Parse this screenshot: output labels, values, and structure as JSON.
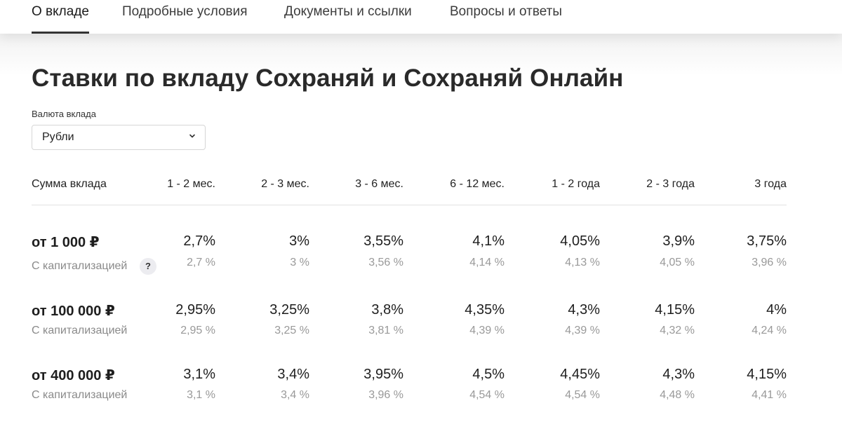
{
  "nav": {
    "tabs": [
      {
        "label": "О вкладе",
        "active": true
      },
      {
        "label": "Подробные условия",
        "active": false
      },
      {
        "label": "Документы и ссылки",
        "active": false
      },
      {
        "label": "Вопросы и ответы",
        "active": false
      }
    ]
  },
  "page": {
    "title": "Ставки по вкладу Сохраняй и Сохраняй Онлайн"
  },
  "currency": {
    "label": "Валюта вклада",
    "selected": "Рубли"
  },
  "table": {
    "first_header": "Сумма вклада",
    "columns": [
      "1 - 2 мес.",
      "2 - 3 мес.",
      "3 - 6 мес.",
      "6 - 12 мес.",
      "1 - 2 года",
      "2 - 3 года",
      "3 года"
    ],
    "rows": [
      {
        "amount": "от 1 000 ₽",
        "cap_label": "С капитализацией",
        "rates": [
          "2,7%",
          "3%",
          "3,55%",
          "4,1%",
          "4,05%",
          "3,9%",
          "3,75%"
        ],
        "cap_rates": [
          "2,7 %",
          "3 %",
          "3,56 %",
          "4,14 %",
          "4,13 %",
          "4,05 %",
          "3,96 %"
        ]
      },
      {
        "amount": "от 100 000 ₽",
        "cap_label": "С капитализацией",
        "rates": [
          "2,95%",
          "3,25%",
          "3,8%",
          "4,35%",
          "4,3%",
          "4,15%",
          "4%"
        ],
        "cap_rates": [
          "2,95 %",
          "3,25 %",
          "3,81 %",
          "4,39 %",
          "4,39 %",
          "4,32 %",
          "4,24 %"
        ]
      },
      {
        "amount": "от 400 000 ₽",
        "cap_label": "С капитализацией",
        "rates": [
          "3,1%",
          "3,4%",
          "3,95%",
          "4,5%",
          "4,45%",
          "4,3%",
          "4,15%"
        ],
        "cap_rates": [
          "3,1 %",
          "3,4 %",
          "3,96 %",
          "4,54 %",
          "4,54 %",
          "4,48 %",
          "4,41 %"
        ]
      }
    ],
    "help_glyph": "?"
  }
}
